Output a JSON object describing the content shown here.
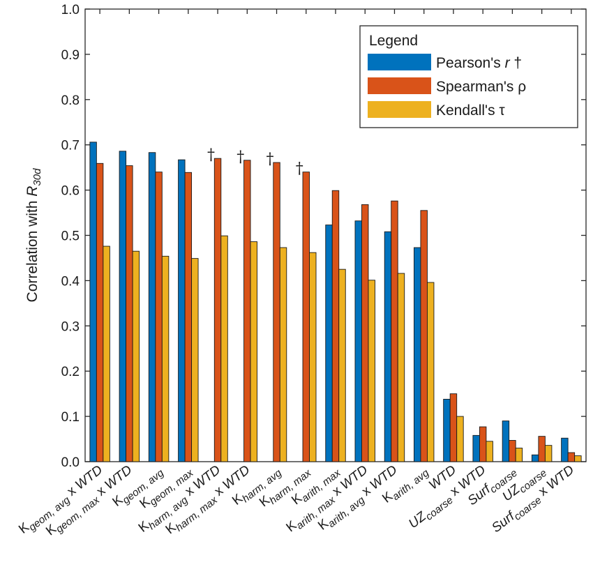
{
  "chart_data": {
    "type": "bar",
    "ylabel": {
      "main": "Correlation with ",
      "italic": "R",
      "sub": "30d"
    },
    "ylim": [
      0,
      1
    ],
    "yticks": [
      "0.0",
      "0.1",
      "0.2",
      "0.3",
      "0.4",
      "0.5",
      "0.6",
      "0.7",
      "0.8",
      "0.9",
      "1.0"
    ],
    "legend": {
      "title": "Legend",
      "placement": "top-right"
    },
    "dagger_symbol": "†",
    "series": [
      {
        "name": "Pearson's r †",
        "label_parts": [
          "Pearson's ",
          "r",
          " †"
        ],
        "color": "#0072BD",
        "values": [
          0.706,
          0.686,
          0.683,
          0.667,
          null,
          null,
          null,
          null,
          0.523,
          0.532,
          0.508,
          0.473,
          0.138,
          0.058,
          0.09,
          0.015,
          0.052
        ]
      },
      {
        "name": "Spearman's ρ",
        "label_parts": [
          "Spearman's ρ"
        ],
        "color": "#D95319",
        "values": [
          0.659,
          0.654,
          0.64,
          0.639,
          0.67,
          0.666,
          0.661,
          0.64,
          0.599,
          0.568,
          0.576,
          0.555,
          0.15,
          0.077,
          0.047,
          0.056,
          0.02
        ]
      },
      {
        "name": "Kendall's τ",
        "label_parts": [
          "Kendall's τ"
        ],
        "color": "#EDB120",
        "values": [
          0.476,
          0.465,
          0.454,
          0.449,
          0.499,
          0.486,
          0.473,
          0.462,
          0.425,
          0.401,
          0.416,
          0.396,
          0.1,
          0.045,
          0.03,
          0.036,
          0.013
        ]
      }
    ],
    "categories": [
      {
        "parts": [
          {
            "t": "K",
            "s": "n"
          },
          {
            "t": "geom, avg",
            "s": "sub"
          },
          {
            "t": " x ",
            "s": "n"
          },
          {
            "t": "WTD",
            "s": "i"
          }
        ],
        "dagger": false
      },
      {
        "parts": [
          {
            "t": "K",
            "s": "n"
          },
          {
            "t": "geom, max",
            "s": "sub"
          },
          {
            "t": " x ",
            "s": "n"
          },
          {
            "t": "WTD",
            "s": "i"
          }
        ],
        "dagger": false
      },
      {
        "parts": [
          {
            "t": "K",
            "s": "n"
          },
          {
            "t": "geom, avg",
            "s": "sub"
          }
        ],
        "dagger": false
      },
      {
        "parts": [
          {
            "t": "K",
            "s": "n"
          },
          {
            "t": "geom, max",
            "s": "sub"
          }
        ],
        "dagger": false
      },
      {
        "parts": [
          {
            "t": "K",
            "s": "n"
          },
          {
            "t": "harm, avg",
            "s": "sub"
          },
          {
            "t": " x ",
            "s": "n"
          },
          {
            "t": "WTD",
            "s": "i"
          }
        ],
        "dagger": true
      },
      {
        "parts": [
          {
            "t": "K",
            "s": "n"
          },
          {
            "t": "harm, max",
            "s": "sub"
          },
          {
            "t": " x ",
            "s": "n"
          },
          {
            "t": "WTD",
            "s": "i"
          }
        ],
        "dagger": true
      },
      {
        "parts": [
          {
            "t": "K",
            "s": "n"
          },
          {
            "t": "harm, avg",
            "s": "sub"
          }
        ],
        "dagger": true
      },
      {
        "parts": [
          {
            "t": "K",
            "s": "n"
          },
          {
            "t": "harm, max",
            "s": "sub"
          }
        ],
        "dagger": true
      },
      {
        "parts": [
          {
            "t": "K",
            "s": "n"
          },
          {
            "t": "arith, max",
            "s": "sub"
          }
        ],
        "dagger": false
      },
      {
        "parts": [
          {
            "t": "K",
            "s": "n"
          },
          {
            "t": "arith, max",
            "s": "sub"
          },
          {
            "t": " x ",
            "s": "n"
          },
          {
            "t": "WTD",
            "s": "i"
          }
        ],
        "dagger": false
      },
      {
        "parts": [
          {
            "t": "K",
            "s": "n"
          },
          {
            "t": "arith, avg",
            "s": "sub"
          },
          {
            "t": " x ",
            "s": "n"
          },
          {
            "t": "WTD",
            "s": "i"
          }
        ],
        "dagger": false
      },
      {
        "parts": [
          {
            "t": "K",
            "s": "n"
          },
          {
            "t": "arith, avg",
            "s": "sub"
          }
        ],
        "dagger": false
      },
      {
        "parts": [
          {
            "t": "WTD",
            "s": "i"
          }
        ],
        "dagger": false
      },
      {
        "parts": [
          {
            "t": "UZ",
            "s": "i"
          },
          {
            "t": "coarse",
            "s": "sub"
          },
          {
            "t": " x ",
            "s": "n"
          },
          {
            "t": "WTD",
            "s": "i"
          }
        ],
        "dagger": false
      },
      {
        "parts": [
          {
            "t": "Surf",
            "s": "i"
          },
          {
            "t": "coarse",
            "s": "sub"
          }
        ],
        "dagger": false
      },
      {
        "parts": [
          {
            "t": "UZ",
            "s": "i"
          },
          {
            "t": "coarse",
            "s": "sub"
          }
        ],
        "dagger": false
      },
      {
        "parts": [
          {
            "t": "Surf",
            "s": "i"
          },
          {
            "t": "coarse",
            "s": "sub"
          },
          {
            "t": " x ",
            "s": "n"
          },
          {
            "t": "WTD",
            "s": "i"
          }
        ],
        "dagger": false
      }
    ],
    "grid": false
  }
}
